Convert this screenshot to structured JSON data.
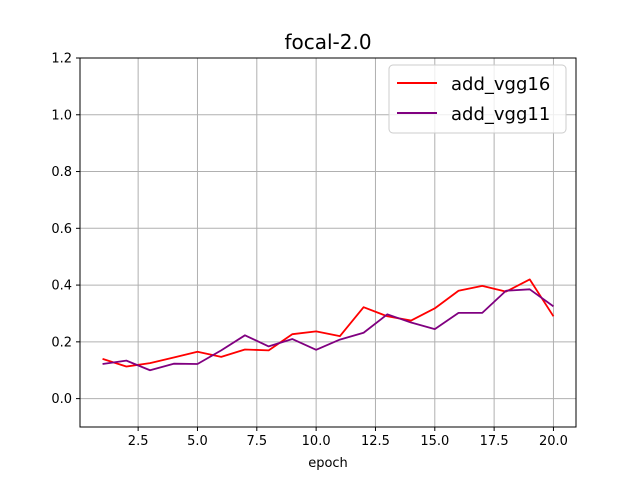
{
  "chart_data": {
    "type": "line",
    "title": "focal-2.0",
    "xlabel": "epoch",
    "ylabel": "",
    "xlim": [
      0.05,
      20.95
    ],
    "ylim": [
      -0.1,
      1.2
    ],
    "xticks": [
      2.5,
      5.0,
      7.5,
      10.0,
      12.5,
      15.0,
      17.5,
      20.0
    ],
    "xtick_labels": [
      "2.5",
      "5.0",
      "7.5",
      "10.0",
      "12.5",
      "15.0",
      "17.5",
      "20.0"
    ],
    "yticks": [
      0.0,
      0.2,
      0.4,
      0.6,
      0.8,
      1.0,
      1.2
    ],
    "ytick_labels": [
      "0.0",
      "0.2",
      "0.4",
      "0.6",
      "0.8",
      "1.0",
      "1.2"
    ],
    "grid": true,
    "legend_position": "top-right",
    "x": [
      1,
      2,
      3,
      4,
      5,
      6,
      7,
      8,
      9,
      10,
      11,
      12,
      13,
      14,
      15,
      16,
      17,
      18,
      19,
      20
    ],
    "series": [
      {
        "name": "add_vgg16",
        "color": "#ff0000",
        "values": [
          0.14,
          0.113,
          0.125,
          0.145,
          0.165,
          0.147,
          0.173,
          0.17,
          0.227,
          0.237,
          0.22,
          0.322,
          0.29,
          0.275,
          0.318,
          0.38,
          0.397,
          0.377,
          0.42,
          0.29
        ]
      },
      {
        "name": "add_vgg11",
        "color": "#800080",
        "values": [
          0.122,
          0.134,
          0.1,
          0.123,
          0.122,
          0.17,
          0.223,
          0.184,
          0.21,
          0.172,
          0.208,
          0.232,
          0.297,
          0.268,
          0.245,
          0.302,
          0.302,
          0.38,
          0.385,
          0.325
        ]
      }
    ]
  }
}
